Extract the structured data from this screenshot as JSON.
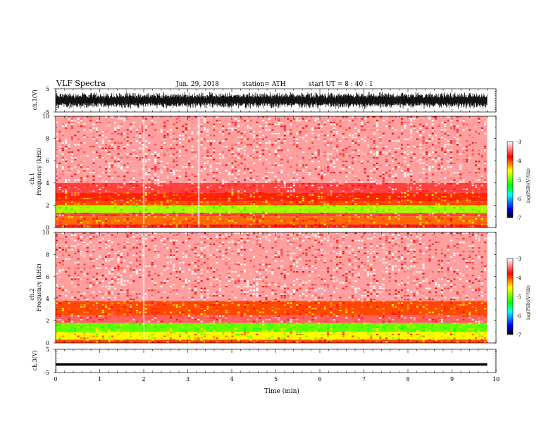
{
  "header": {
    "title": "VLF  Spectra",
    "date": "Jun. 29, 2018",
    "station": "station= ATH",
    "start": "start  UT  =   8  : 40 : 1"
  },
  "chart_data": [
    {
      "type": "line",
      "name": "ch1-waveform",
      "ylabel": "ch.1(V)",
      "ylim": [
        -5,
        5
      ],
      "y_ticks": [
        "5",
        "-5"
      ],
      "xlim": [
        0,
        10
      ],
      "data_extent_min": [
        0,
        9.8
      ],
      "description": "dense oscillating waveform spanning roughly -3.5 to 3.5 V"
    },
    {
      "type": "heatmap",
      "name": "ch1-spectrogram",
      "ylabel_lines": [
        "ch.1",
        "Frequency  (kHz)"
      ],
      "ylim": [
        0,
        10
      ],
      "y_ticks": [
        "0",
        "2",
        "4",
        "6",
        "8",
        "10"
      ],
      "xlim": [
        0,
        10
      ],
      "x_data_max": 9.8,
      "bands_khz": [
        {
          "from": 0.0,
          "to": 0.3,
          "level": -3.9
        },
        {
          "from": 0.3,
          "to": 1.0,
          "level": -4.1
        },
        {
          "from": 1.0,
          "to": 1.3,
          "level": -3.6
        },
        {
          "from": 1.3,
          "to": 2.0,
          "level": -4.8
        },
        {
          "from": 2.0,
          "to": 2.4,
          "level": -4.0
        },
        {
          "from": 2.4,
          "to": 3.1,
          "level": -3.9
        },
        {
          "from": 3.1,
          "to": 4.0,
          "level": -3.6
        },
        {
          "from": 4.0,
          "to": 10.0,
          "level": -3.3
        }
      ],
      "events_min": [
        2.0,
        3.25
      ],
      "colorbar": {
        "label": "log(PSD)(V²/Hz)",
        "ticks": [
          "-3",
          "-4",
          "-5",
          "-6",
          "-7"
        ],
        "range": [
          -7,
          -3
        ]
      }
    },
    {
      "type": "heatmap",
      "name": "ch2-spectrogram",
      "ylabel_lines": [
        "ch.2",
        "Frequency  (kHz)"
      ],
      "ylim": [
        0,
        10
      ],
      "y_ticks": [
        "0",
        "2",
        "4",
        "6",
        "8",
        "10"
      ],
      "xlim": [
        0,
        10
      ],
      "x_data_max": 9.8,
      "bands_khz": [
        {
          "from": 0.0,
          "to": 0.3,
          "level": -4.0
        },
        {
          "from": 0.3,
          "to": 1.0,
          "level": -4.5
        },
        {
          "from": 1.0,
          "to": 1.8,
          "level": -5.0
        },
        {
          "from": 1.8,
          "to": 2.5,
          "level": -3.5
        },
        {
          "from": 2.5,
          "to": 3.8,
          "level": -4.0
        },
        {
          "from": 3.8,
          "to": 10.0,
          "level": -3.3
        }
      ],
      "events_min": [
        2.0
      ],
      "colorbar": {
        "label": "log(PSD)(V²/Hz)",
        "ticks": [
          "-3",
          "-4",
          "-5",
          "-6",
          "-7"
        ],
        "range": [
          -7,
          -3
        ]
      }
    },
    {
      "type": "line",
      "name": "ch3-waveform",
      "ylabel": "ch.3(V)",
      "ylim": [
        -5,
        5
      ],
      "y_ticks": [
        "5",
        "-5"
      ],
      "xlim": [
        0,
        10
      ],
      "x_data_max": 9.8,
      "constant_value": -1.5,
      "xlabel": "Time  (min)",
      "x_ticks": [
        "0",
        "1",
        "2",
        "3",
        "4",
        "5",
        "6",
        "7",
        "8",
        "9",
        "10"
      ]
    }
  ],
  "colors": {
    "colormap": [
      "#000000",
      "#0000ff",
      "#00ffff",
      "#00ff00",
      "#ffff00",
      "#ff0000",
      "#ffffff"
    ]
  }
}
